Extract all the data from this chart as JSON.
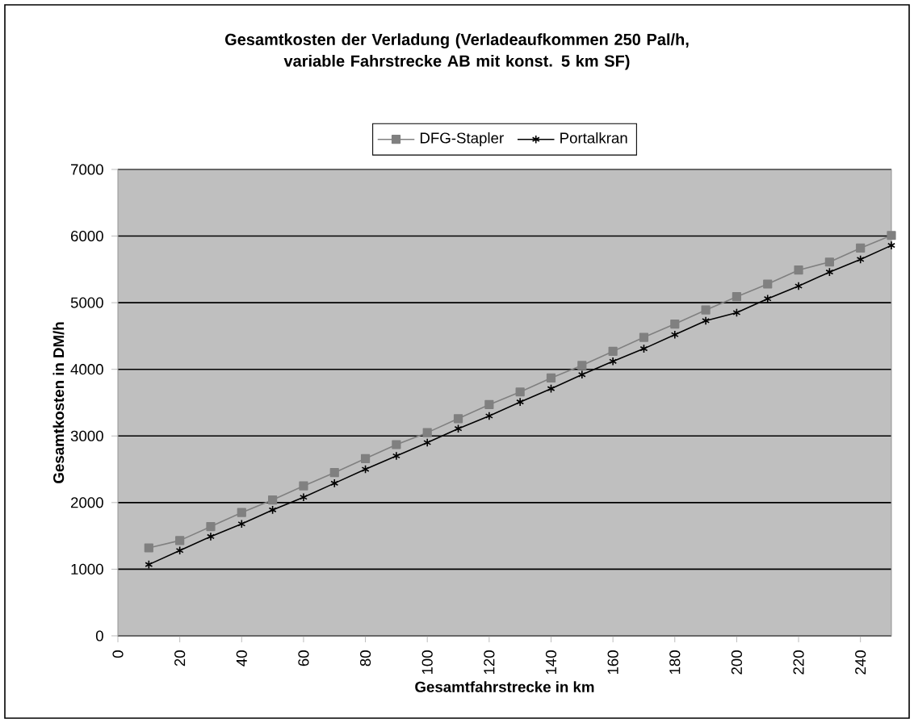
{
  "chart_data": {
    "type": "line",
    "title": "Gesamtkosten der Verladung (Verladeaufkommen 250 Pal/h,\nvariable Fahrstrecke AB mit konst. 5 km SF)",
    "xlabel": "Gesamtfahrstrecke in km",
    "ylabel": "Gesamtkosten in DM/h",
    "x": [
      10,
      20,
      30,
      40,
      50,
      60,
      70,
      80,
      90,
      100,
      110,
      120,
      130,
      140,
      150,
      160,
      170,
      180,
      190,
      200,
      210,
      220,
      230,
      240,
      250
    ],
    "series": [
      {
        "name": "DFG-Stapler",
        "color": "#808080",
        "marker": "square",
        "values": [
          1320,
          1430,
          1640,
          1850,
          2040,
          2250,
          2450,
          2660,
          2870,
          3050,
          3260,
          3470,
          3660,
          3870,
          4060,
          4270,
          4480,
          4680,
          4890,
          5090,
          5280,
          5490,
          5610,
          5820,
          6010
        ]
      },
      {
        "name": "Portalkran",
        "color": "#000000",
        "marker": "cross",
        "values": [
          1070,
          1280,
          1490,
          1680,
          1890,
          2080,
          2290,
          2500,
          2700,
          2900,
          3110,
          3300,
          3510,
          3710,
          3920,
          4120,
          4310,
          4520,
          4730,
          4850,
          5060,
          5250,
          5460,
          5650,
          5860
        ]
      }
    ],
    "xlim": [
      0,
      250
    ],
    "xticks": [
      0,
      20,
      40,
      60,
      80,
      100,
      120,
      140,
      160,
      180,
      200,
      220,
      240
    ],
    "ylim": [
      0,
      7000
    ],
    "yticks": [
      0,
      1000,
      2000,
      3000,
      4000,
      5000,
      6000,
      7000
    ],
    "grid": "y",
    "legend": "top"
  }
}
